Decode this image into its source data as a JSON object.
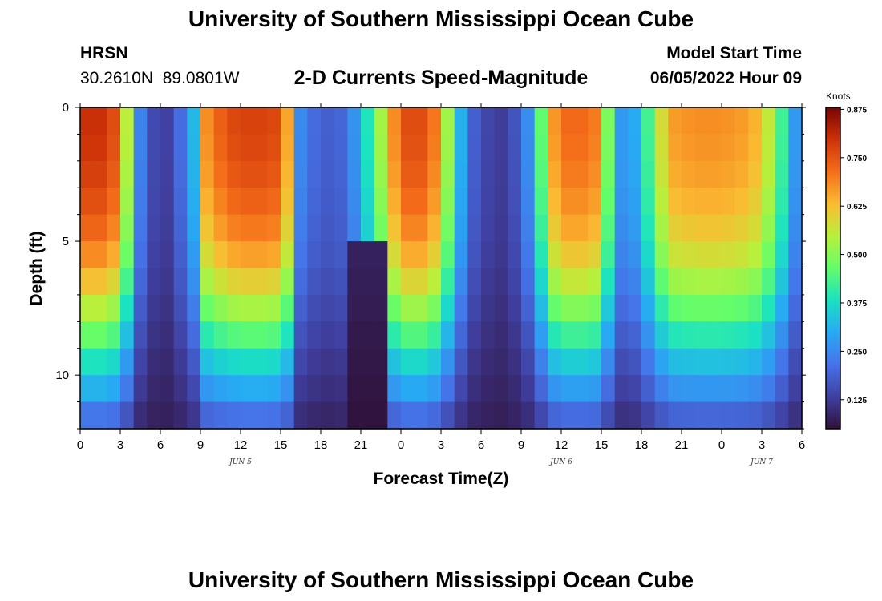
{
  "header": {
    "title": "University of Southern Mississippi Ocean Cube",
    "station": "HRSN",
    "coordinates": "30.2610N  89.0801W",
    "subtitle": "2-D Currents Speed-Magnitude",
    "start_label": "Model Start Time",
    "start_value": "06/05/2022 Hour 09"
  },
  "footer": {
    "title": "University of Southern Mississippi Ocean Cube"
  },
  "chart_data": {
    "type": "heatmap",
    "title": "2-D Currents Speed-Magnitude",
    "xlabel": "Forecast Time(Z)",
    "ylabel": "Depth (ft)",
    "x_range_hours": [
      0,
      54
    ],
    "y_range_ft": [
      0,
      12
    ],
    "x_tick_labels": [
      "0",
      "3",
      "6",
      "9",
      "12",
      "15",
      "18",
      "21",
      "0",
      "3",
      "6",
      "9",
      "12",
      "15",
      "18",
      "21",
      "0",
      "3",
      "6"
    ],
    "y_tick_labels": [
      "0",
      "5",
      "10"
    ],
    "y_tick_values": [
      0,
      5,
      10
    ],
    "date_labels": [
      {
        "text": "JUN 5",
        "hour": 12
      },
      {
        "text": "JUN 6",
        "hour": 36
      },
      {
        "text": "JUN 7",
        "hour": 51
      }
    ],
    "colorbar": {
      "units": "Knots",
      "min": 0.05,
      "max": 0.88,
      "tick_values": [
        0.875,
        0.75,
        0.625,
        0.5,
        0.375,
        0.25,
        0.125
      ],
      "tick_labels": [
        "0.875",
        "0.750",
        "0.625",
        "0.500",
        "0.375",
        "0.250",
        "0.125"
      ]
    },
    "depth_levels_ft": [
      0.5,
      1.5,
      2.5,
      3.5,
      4.5,
      5.5,
      6.5,
      7.5,
      8.5,
      9.5,
      10.5,
      11.5
    ],
    "speed_profile_hours": [
      0,
      2,
      3,
      3.5,
      4,
      5,
      6,
      7,
      8.5,
      9.5,
      11,
      13,
      15,
      16,
      16.5,
      18,
      20,
      22,
      24,
      26,
      27,
      28,
      29,
      30,
      32,
      34,
      35,
      36,
      38,
      39,
      40,
      41,
      42,
      44,
      46,
      48,
      50,
      51,
      52,
      53,
      54
    ],
    "surface_speed_knots": [
      0.8,
      0.8,
      0.72,
      0.55,
      0.3,
      0.18,
      0.12,
      0.15,
      0.32,
      0.68,
      0.76,
      0.78,
      0.76,
      0.55,
      0.25,
      0.18,
      0.2,
      0.45,
      0.76,
      0.76,
      0.65,
      0.4,
      0.22,
      0.15,
      0.12,
      0.3,
      0.62,
      0.72,
      0.72,
      0.68,
      0.3,
      0.25,
      0.35,
      0.66,
      0.68,
      0.68,
      0.66,
      0.62,
      0.5,
      0.35,
      0.2
    ],
    "depth_decay_factor": [
      1.0,
      0.99,
      0.97,
      0.94,
      0.9,
      0.84,
      0.76,
      0.66,
      0.55,
      0.44,
      0.34,
      0.22
    ],
    "bottom_minimum_hours": [
      21.5,
      34
    ],
    "bottom_minimum_knots": 0.05
  }
}
